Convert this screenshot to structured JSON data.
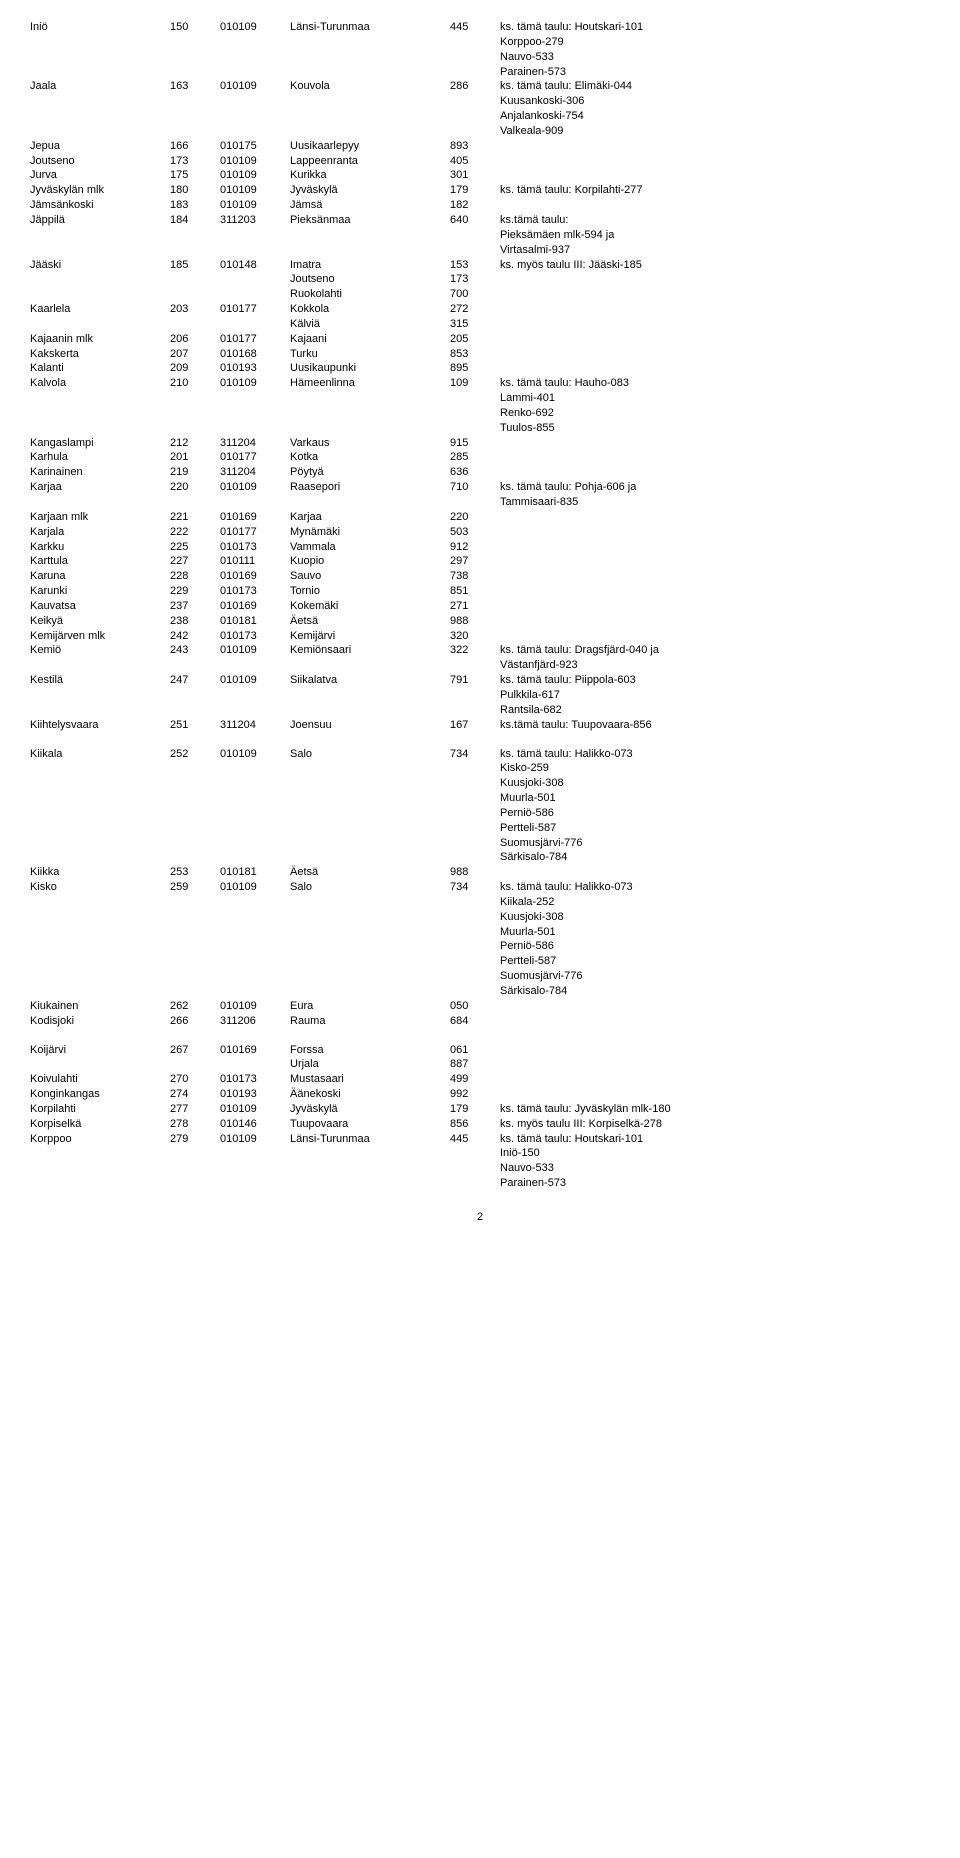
{
  "page_number": "2",
  "rows": [
    {
      "name": "Iniö",
      "num": "150",
      "code": "010109",
      "dest": "Länsi-Turunmaa",
      "dnum": "445",
      "notes": [
        "ks. tämä taulu: Houtskari-101",
        "Korppoo-279",
        "Nauvo-533",
        "Parainen-573"
      ]
    },
    {
      "name": "Jaala",
      "num": "163",
      "code": "010109",
      "dest": "Kouvola",
      "dnum": "286",
      "notes": [
        "ks. tämä taulu: Elimäki-044",
        "Kuusankoski-306",
        "Anjalankoski-754",
        "Valkeala-909"
      ]
    },
    {
      "name": "Jepua",
      "num": "166",
      "code": "010175",
      "dest": "Uusikaarlepyy",
      "dnum": "893"
    },
    {
      "name": "Joutseno",
      "num": "173",
      "code": "010109",
      "dest": "Lappeenranta",
      "dnum": "405"
    },
    {
      "name": "Jurva",
      "num": "175",
      "code": "010109",
      "dest": "Kurikka",
      "dnum": "301"
    },
    {
      "name": "Jyväskylän mlk",
      "num": "180",
      "code": "010109",
      "dest": "Jyväskylä",
      "dnum": "179",
      "notes": [
        "ks. tämä taulu: Korpilahti-277"
      ]
    },
    {
      "name": "Jämsänkoski",
      "num": "183",
      "code": "010109",
      "dest": "Jämsä",
      "dnum": "182"
    },
    {
      "name": "Jäppilä",
      "num": "184",
      "code": "311203",
      "dest": "Pieksänmaa",
      "dnum": "640",
      "notes": [
        "ks.tämä taulu:",
        "Pieksämäen mlk-594 ja",
        "Virtasalmi-937"
      ]
    },
    {
      "name": "Jääski",
      "num": "185",
      "code": "010148",
      "dest": "Imatra",
      "dnum": "153",
      "notes": [
        "ks. myös taulu III: Jääski-185"
      ],
      "sub": [
        {
          "dest": "Joutseno",
          "dnum": "173"
        },
        {
          "dest": "Ruokolahti",
          "dnum": "700"
        }
      ]
    },
    {
      "name": "Kaarlela",
      "num": "203",
      "code": "010177",
      "dest": "Kokkola",
      "dnum": "272",
      "sub": [
        {
          "dest": "Kälviä",
          "dnum": "315"
        }
      ]
    },
    {
      "name": "Kajaanin mlk",
      "num": "206",
      "code": "010177",
      "dest": "Kajaani",
      "dnum": "205"
    },
    {
      "name": "Kakskerta",
      "num": "207",
      "code": "010168",
      "dest": "Turku",
      "dnum": "853"
    },
    {
      "name": "Kalanti",
      "num": "209",
      "code": "010193",
      "dest": "Uusikaupunki",
      "dnum": "895"
    },
    {
      "name": "Kalvola",
      "num": "210",
      "code": "010109",
      "dest": "Hämeenlinna",
      "dnum": "109",
      "notes": [
        "ks. tämä taulu: Hauho-083",
        "Lammi-401",
        "Renko-692",
        "Tuulos-855"
      ]
    },
    {
      "name": "Kangaslampi",
      "num": "212",
      "code": "311204",
      "dest": "Varkaus",
      "dnum": "915"
    },
    {
      "name": "Karhula",
      "num": "201",
      "code": "010177",
      "dest": "Kotka",
      "dnum": "285"
    },
    {
      "name": "Karinainen",
      "num": "219",
      "code": "311204",
      "dest": "Pöytyä",
      "dnum": "636"
    },
    {
      "name": "Karjaa",
      "num": "220",
      "code": "010109",
      "dest": "Raasepori",
      "dnum": "710",
      "notes": [
        "ks. tämä taulu: Pohja-606 ja",
        "Tammisaari-835"
      ]
    },
    {
      "name": "Karjaan mlk",
      "num": "221",
      "code": "010169",
      "dest": "Karjaa",
      "dnum": "220"
    },
    {
      "name": "Karjala",
      "num": "222",
      "code": "010177",
      "dest": "Mynämäki",
      "dnum": "503"
    },
    {
      "name": "Karkku",
      "num": "225",
      "code": "010173",
      "dest": "Vammala",
      "dnum": "912"
    },
    {
      "name": "Karttula",
      "num": "227",
      "code": "010111",
      "dest": "Kuopio",
      "dnum": "297"
    },
    {
      "name": "Karuna",
      "num": "228",
      "code": "010169",
      "dest": "Sauvo",
      "dnum": "738"
    },
    {
      "name": "Karunki",
      "num": "229",
      "code": "010173",
      "dest": "Tornio",
      "dnum": "851"
    },
    {
      "name": "Kauvatsa",
      "num": "237",
      "code": "010169",
      "dest": "Kokemäki",
      "dnum": "271"
    },
    {
      "name": "Keikyä",
      "num": "238",
      "code": "010181",
      "dest": "Äetsä",
      "dnum": "988"
    },
    {
      "name": "Kemijärven mlk",
      "num": "242",
      "code": "010173",
      "dest": "Kemijärvi",
      "dnum": "320"
    },
    {
      "name": "Kemiö",
      "num": "243",
      "code": "010109",
      "dest": "Kemiönsaari",
      "dnum": "322",
      "notes": [
        "ks. tämä taulu: Dragsfjärd-040 ja",
        "Västanfjärd-923"
      ]
    },
    {
      "name": "Kestilä",
      "num": "247",
      "code": "010109",
      "dest": "Siikalatva",
      "dnum": "791",
      "notes": [
        "ks. tämä taulu: Piippola-603",
        "Pulkkila-617",
        "Rantsila-682"
      ]
    },
    {
      "name": "Kiihtelysvaara",
      "num": "251",
      "code": "311204",
      "dest": "Joensuu",
      "dnum": "167",
      "notes": [
        "ks.tämä taulu: Tuupovaara-856"
      ]
    },
    {
      "gap": true
    },
    {
      "name": "Kiikala",
      "num": "252",
      "code": "010109",
      "dest": "Salo",
      "dnum": "734",
      "notes": [
        "ks. tämä taulu: Halikko-073",
        "Kisko-259",
        "Kuusjoki-308",
        "Muurla-501",
        "Perniö-586",
        "Pertteli-587",
        "Suomusjärvi-776",
        "Särkisalo-784"
      ]
    },
    {
      "name": "Kiikka",
      "num": "253",
      "code": "010181",
      "dest": "Äetsä",
      "dnum": "988"
    },
    {
      "name": "Kisko",
      "num": "259",
      "code": "010109",
      "dest": "Salo",
      "dnum": "734",
      "notes": [
        "ks. tämä taulu: Halikko-073",
        "Kiikala-252",
        "Kuusjoki-308",
        "Muurla-501",
        "Perniö-586",
        "Pertteli-587",
        "Suomusjärvi-776",
        "Särkisalo-784"
      ]
    },
    {
      "name": "Kiukainen",
      "num": "262",
      "code": "010109",
      "dest": "Eura",
      "dnum": "050"
    },
    {
      "name": "Kodisjoki",
      "num": "266",
      "code": "311206",
      "dest": "Rauma",
      "dnum": "684"
    },
    {
      "gap": true
    },
    {
      "name": "Koijärvi",
      "num": "267",
      "code": "010169",
      "dest": "Forssa",
      "dnum": "061",
      "sub": [
        {
          "dest": "Urjala",
          "dnum": "887"
        }
      ]
    },
    {
      "name": "Koivulahti",
      "num": "270",
      "code": "010173",
      "dest": "Mustasaari",
      "dnum": "499"
    },
    {
      "name": "Konginkangas",
      "num": "274",
      "code": "010193",
      "dest": "Äänekoski",
      "dnum": "992"
    },
    {
      "name": "Korpilahti",
      "num": "277",
      "code": "010109",
      "dest": "Jyväskylä",
      "dnum": "179",
      "notes": [
        "ks. tämä taulu: Jyväskylän mlk-180"
      ]
    },
    {
      "name": "Korpiselkä",
      "num": "278",
      "code": "010146",
      "dest": "Tuupovaara",
      "dnum": "856",
      "notes": [
        "ks. myös taulu III: Korpiselkä-278"
      ]
    },
    {
      "name": "Korppoo",
      "num": "279",
      "code": "010109",
      "dest": "Länsi-Turunmaa",
      "dnum": "445",
      "notes": [
        "ks. tämä taulu: Houtskari-101",
        "Iniö-150",
        "Nauvo-533",
        "Parainen-573"
      ]
    }
  ]
}
